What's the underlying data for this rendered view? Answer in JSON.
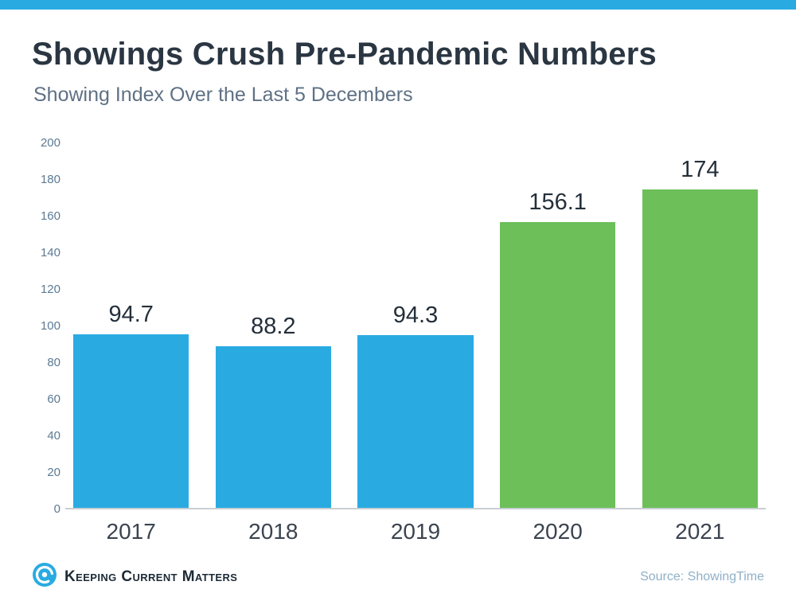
{
  "page": {
    "title": "Showings Crush Pre-Pandemic Numbers",
    "subtitle": "Showing Index Over the Last 5 Decembers"
  },
  "chart_data": {
    "type": "bar",
    "title": "Showings Crush Pre-Pandemic Numbers",
    "subtitle": "Showing Index Over the Last 5 Decembers",
    "categories": [
      "2017",
      "2018",
      "2019",
      "2020",
      "2021"
    ],
    "values": [
      94.7,
      88.2,
      94.3,
      156.1,
      174
    ],
    "value_labels": [
      "94.7",
      "88.2",
      "94.3",
      "156.1",
      "174"
    ],
    "bar_colors": [
      "#29abe2",
      "#29abe2",
      "#29abe2",
      "#6cbf59",
      "#6cbf59"
    ],
    "xlabel": "",
    "ylabel": "",
    "ylim": [
      0,
      200
    ],
    "yticks": [
      0,
      20,
      40,
      60,
      80,
      100,
      120,
      140,
      160,
      180,
      200
    ],
    "grid": false,
    "legend": false
  },
  "footer": {
    "brand": "Keeping Current Matters",
    "source": "Source: ShowingTime"
  },
  "colors": {
    "accent_strip": "#29abe2",
    "blue_bar": "#29abe2",
    "green_bar": "#6cbf59",
    "title": "#2a3642",
    "subtitle": "#5f7184",
    "source": "#8fb0c7"
  }
}
